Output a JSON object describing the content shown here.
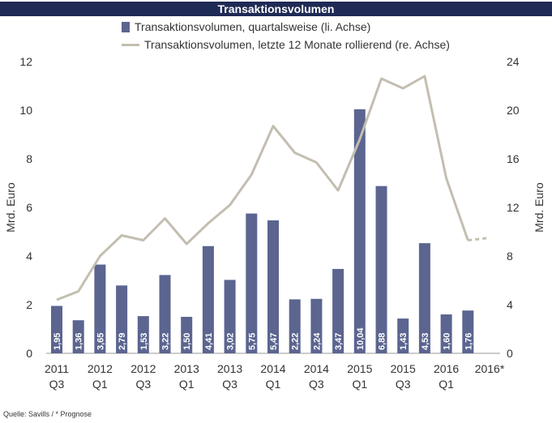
{
  "title": "Transaktionsvolumen",
  "source": "Quelle: Savills / * Prognose",
  "colors": {
    "title_bg": "#1f2a55",
    "bar": "#5b6590",
    "line": "#c3beb0",
    "axis_text": "#333333"
  },
  "chart_data": {
    "type": "bar+line",
    "categories": [
      "2011 Q3",
      "2011 Q4",
      "2012 Q1",
      "2012 Q2",
      "2012 Q3",
      "2012 Q4",
      "2013 Q1",
      "2013 Q2",
      "2013 Q3",
      "2013 Q4",
      "2014 Q1",
      "2014 Q2",
      "2014 Q3",
      "2014 Q4",
      "2015 Q1",
      "2015 Q2",
      "2015 Q3",
      "2015 Q4",
      "2016 Q1",
      "2016 Q2"
    ],
    "x_tick_labels": [
      {
        "index": 0,
        "line1": "2011",
        "line2": "Q3"
      },
      {
        "index": 2,
        "line1": "2012",
        "line2": "Q1"
      },
      {
        "index": 4,
        "line1": "2012",
        "line2": "Q3"
      },
      {
        "index": 6,
        "line1": "2013",
        "line2": "Q1"
      },
      {
        "index": 8,
        "line1": "2013",
        "line2": "Q3"
      },
      {
        "index": 10,
        "line1": "2014",
        "line2": "Q1"
      },
      {
        "index": 12,
        "line1": "2014",
        "line2": "Q3"
      },
      {
        "index": 14,
        "line1": "2015",
        "line2": "Q1"
      },
      {
        "index": 16,
        "line1": "2015",
        "line2": "Q3"
      },
      {
        "index": 18,
        "line1": "2016",
        "line2": "Q1"
      },
      {
        "index": 20,
        "line1": "2016*",
        "line2": ""
      }
    ],
    "series": [
      {
        "name": "Transaktionsvolumen, quartalsweise (li. Achse)",
        "kind": "bar",
        "axis": "left",
        "values": [
          1.95,
          1.36,
          3.65,
          2.79,
          1.53,
          3.22,
          1.5,
          4.41,
          3.02,
          5.75,
          5.47,
          2.22,
          2.24,
          3.47,
          10.04,
          6.88,
          1.43,
          4.53,
          1.6,
          1.76
        ],
        "labels": [
          "1,95",
          "1,36",
          "3,65",
          "2,79",
          "1,53",
          "3,22",
          "1,50",
          "4,41",
          "3,02",
          "5,75",
          "5,47",
          "2,22",
          "2,24",
          "3,47",
          "10,04",
          "6,88",
          "1,43",
          "4,53",
          "1,60",
          "1,76"
        ]
      },
      {
        "name": "Transaktionsvolumen, letzte 12 Monate rollierend (re. Achse)",
        "kind": "line",
        "axis": "right",
        "values": [
          4.4,
          5.1,
          8.0,
          9.7,
          9.3,
          11.1,
          9.0,
          10.7,
          12.2,
          14.7,
          18.7,
          16.5,
          15.7,
          13.4,
          17.6,
          22.6,
          21.8,
          22.8,
          14.4,
          9.3
        ],
        "forecast": [
          {
            "x": 19,
            "y": 9.3
          },
          {
            "x": 20,
            "y": 9.5
          }
        ]
      }
    ],
    "y_left": {
      "label": "Mrd. Euro",
      "min": 0,
      "max": 12,
      "ticks": [
        0,
        2,
        4,
        6,
        8,
        10,
        12
      ]
    },
    "y_right": {
      "label": "Mrd. Euro",
      "min": 0,
      "max": 24,
      "ticks": [
        0,
        4,
        8,
        12,
        16,
        20,
        24
      ]
    },
    "grid": false,
    "legend_position": "top"
  }
}
